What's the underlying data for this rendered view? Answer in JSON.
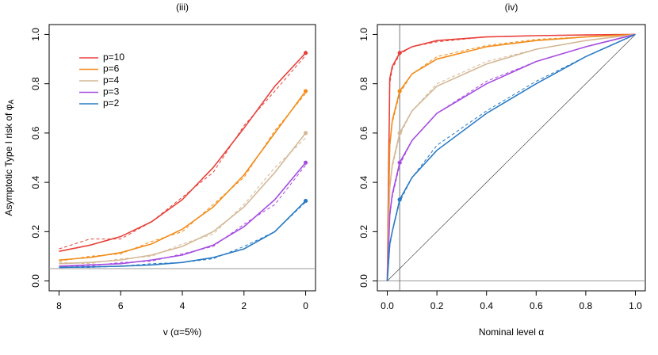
{
  "chart_data": [
    {
      "type": "line",
      "title": "(iii)",
      "xlabel": "v   (α=5%)",
      "ylabel": "Asymptotic Type I risk of φ",
      "ylabel_sub": "A",
      "x": [
        8,
        7,
        6,
        5,
        4,
        3,
        2,
        1,
        0
      ],
      "xlim": [
        8.32,
        -0.32
      ],
      "xticks": [
        8,
        6,
        4,
        2,
        0
      ],
      "ylim": [
        -0.04,
        1.04
      ],
      "yticks": [
        {
          "value": 0,
          "label": "0.0"
        },
        0.2,
        0.4,
        0.6,
        0.8,
        {
          "value": 1,
          "label": "1.0"
        }
      ],
      "hlines": [
        0.05
      ],
      "marker_x": 0,
      "legend": "upper left",
      "series": [
        {
          "name": "p=10",
          "color": "#e8413a",
          "values": [
            0.12,
            0.145,
            0.18,
            0.24,
            0.33,
            0.46,
            0.62,
            0.79,
            0.925
          ],
          "dashed_values": [
            0.13,
            0.17,
            0.17,
            0.24,
            0.34,
            0.44,
            0.63,
            0.77,
            0.915
          ]
        },
        {
          "name": "p=6",
          "color": "#f28c1a",
          "values": [
            0.085,
            0.095,
            0.115,
            0.15,
            0.21,
            0.3,
            0.43,
            0.6,
            0.77
          ],
          "dashed_values": [
            0.08,
            0.1,
            0.11,
            0.16,
            0.2,
            0.31,
            0.42,
            0.61,
            0.76
          ]
        },
        {
          "name": "p=4",
          "color": "#d4b896",
          "values": [
            0.07,
            0.075,
            0.085,
            0.105,
            0.14,
            0.2,
            0.3,
            0.44,
            0.6
          ],
          "dashed_values": [
            0.075,
            0.07,
            0.09,
            0.1,
            0.15,
            0.19,
            0.31,
            0.46,
            0.58
          ]
        },
        {
          "name": "p=3",
          "color": "#a64ce0",
          "values": [
            0.06,
            0.065,
            0.07,
            0.085,
            0.105,
            0.145,
            0.22,
            0.33,
            0.48
          ],
          "dashed_values": [
            0.06,
            0.06,
            0.075,
            0.08,
            0.11,
            0.14,
            0.23,
            0.31,
            0.47
          ]
        },
        {
          "name": "p=2",
          "color": "#2a7bc4",
          "values": [
            0.055,
            0.057,
            0.06,
            0.065,
            0.075,
            0.095,
            0.13,
            0.2,
            0.325
          ],
          "dashed_values": [
            0.055,
            0.055,
            0.06,
            0.07,
            0.075,
            0.09,
            0.14,
            0.2,
            0.32
          ]
        }
      ]
    },
    {
      "type": "line",
      "title": "(iv)",
      "xlabel": "Nominal level α",
      "x": [
        0,
        0.01,
        0.02,
        0.05,
        0.1,
        0.2,
        0.4,
        0.6,
        0.8,
        1
      ],
      "xlim": [
        -0.04,
        1.04
      ],
      "xticks": [
        {
          "value": 0,
          "label": "0.0"
        },
        0.2,
        0.4,
        0.6,
        0.8,
        {
          "value": 1,
          "label": "1.0"
        }
      ],
      "ylim": [
        -0.04,
        1.04
      ],
      "yticks": [
        {
          "value": 0,
          "label": "0.0"
        },
        0.2,
        0.4,
        0.6,
        0.8,
        {
          "value": 1,
          "label": "1.0"
        }
      ],
      "hlines": [
        0
      ],
      "vlines": [
        0.05
      ],
      "diagonal": true,
      "marker_x": 0.05,
      "series": [
        {
          "color": "#e8413a",
          "values": [
            0,
            0.82,
            0.87,
            0.925,
            0.95,
            0.975,
            0.99,
            0.995,
            0.998,
            1
          ],
          "dashed_values": [
            0,
            0.8,
            0.86,
            0.92,
            0.95,
            0.97,
            0.99,
            0.995,
            0.998,
            1
          ]
        },
        {
          "color": "#f28c1a",
          "values": [
            0,
            0.55,
            0.65,
            0.77,
            0.84,
            0.9,
            0.95,
            0.975,
            0.99,
            1
          ],
          "dashed_values": [
            0,
            0.54,
            0.64,
            0.76,
            0.84,
            0.91,
            0.955,
            0.98,
            0.99,
            1
          ]
        },
        {
          "color": "#d4b896",
          "values": [
            0,
            0.38,
            0.47,
            0.6,
            0.69,
            0.79,
            0.88,
            0.94,
            0.975,
            1
          ],
          "dashed_values": [
            0,
            0.37,
            0.46,
            0.59,
            0.69,
            0.8,
            0.89,
            0.94,
            0.975,
            1
          ]
        },
        {
          "color": "#a64ce0",
          "values": [
            0,
            0.27,
            0.35,
            0.48,
            0.57,
            0.68,
            0.8,
            0.89,
            0.95,
            1
          ],
          "dashed_values": [
            0,
            0.26,
            0.34,
            0.47,
            0.57,
            0.68,
            0.81,
            0.89,
            0.95,
            1
          ]
        },
        {
          "color": "#2a7bc4",
          "values": [
            0,
            0.15,
            0.2,
            0.33,
            0.42,
            0.53,
            0.68,
            0.8,
            0.91,
            1
          ],
          "dashed_values": [
            0,
            0.14,
            0.2,
            0.32,
            0.42,
            0.55,
            0.69,
            0.81,
            0.91,
            1
          ]
        }
      ]
    }
  ]
}
